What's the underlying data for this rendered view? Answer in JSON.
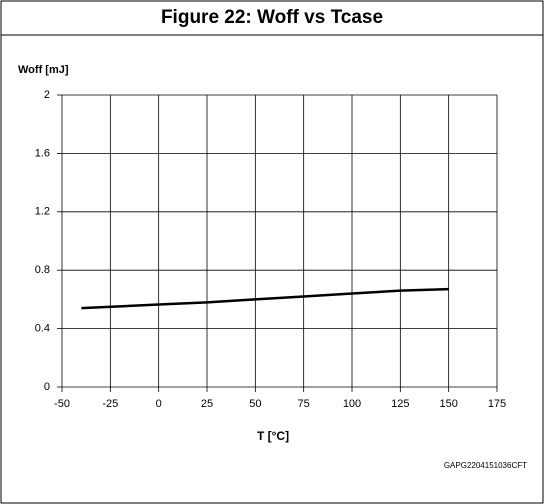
{
  "chart_data": {
    "type": "line",
    "title": "Figure 22: Woff vs Tcase",
    "y_label": "Woff [mJ]",
    "x_label": "T [°C]",
    "footnote": "GAPG2204151036CFT",
    "x": [
      -40,
      0,
      25,
      50,
      75,
      100,
      125,
      150
    ],
    "series": [
      {
        "name": "Woff",
        "color": "#000000",
        "values": [
          0.54,
          0.565,
          0.58,
          0.6,
          0.62,
          0.64,
          0.66,
          0.67
        ]
      }
    ],
    "xlim": [
      -50,
      175
    ],
    "xticks": [
      -50,
      -25,
      0,
      25,
      50,
      75,
      100,
      125,
      150,
      175
    ],
    "ylim": [
      0,
      2
    ],
    "yticks": [
      0,
      0.4,
      0.8,
      1.2,
      1.6,
      2
    ],
    "grid": true
  }
}
